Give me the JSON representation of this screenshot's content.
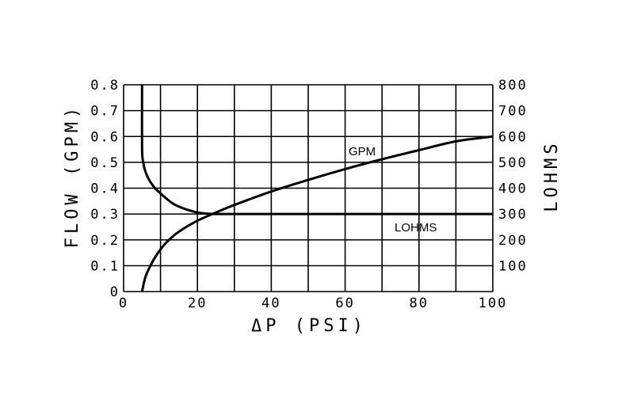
{
  "chart_data": {
    "type": "line",
    "xlabel": "ΔP (PSI)",
    "ylabel_left": "FLOW   (GPM)",
    "ylabel_right": "LOHMS",
    "xlim": [
      0,
      100
    ],
    "ylim_left": [
      0,
      0.8
    ],
    "ylim_right": [
      0,
      800
    ],
    "x_ticks": [
      "0",
      "20",
      "40",
      "60",
      "80",
      "100"
    ],
    "y_ticks_left": [
      "0",
      "0.1",
      "0.2",
      "0.3",
      "0.4",
      "0.5",
      "0.6",
      "0.7",
      "0.8"
    ],
    "y_ticks_right": [
      "100",
      "200",
      "300",
      "400",
      "500",
      "600",
      "700",
      "800"
    ],
    "grid": true,
    "series": [
      {
        "name": "GPM",
        "axis": "left",
        "x": [
          5,
          6,
          8,
          10,
          12,
          15,
          20,
          25,
          30,
          40,
          50,
          60,
          70,
          80,
          90,
          100
        ],
        "y": [
          0,
          0.06,
          0.12,
          0.163,
          0.196,
          0.232,
          0.274,
          0.306,
          0.335,
          0.387,
          0.432,
          0.474,
          0.512,
          0.547,
          0.581,
          0.6
        ]
      },
      {
        "name": "LOHMS",
        "axis": "right",
        "x": [
          5,
          5,
          5.3,
          6,
          7,
          8.5,
          10,
          12,
          14,
          17,
          20,
          23,
          25,
          30,
          40,
          50,
          60,
          70,
          80,
          90,
          100
        ],
        "y": [
          800,
          560,
          500,
          460,
          430,
          400,
          380,
          355,
          335,
          318,
          306,
          301,
          300,
          300,
          300,
          300,
          300,
          300,
          300,
          300,
          300
        ]
      }
    ]
  }
}
